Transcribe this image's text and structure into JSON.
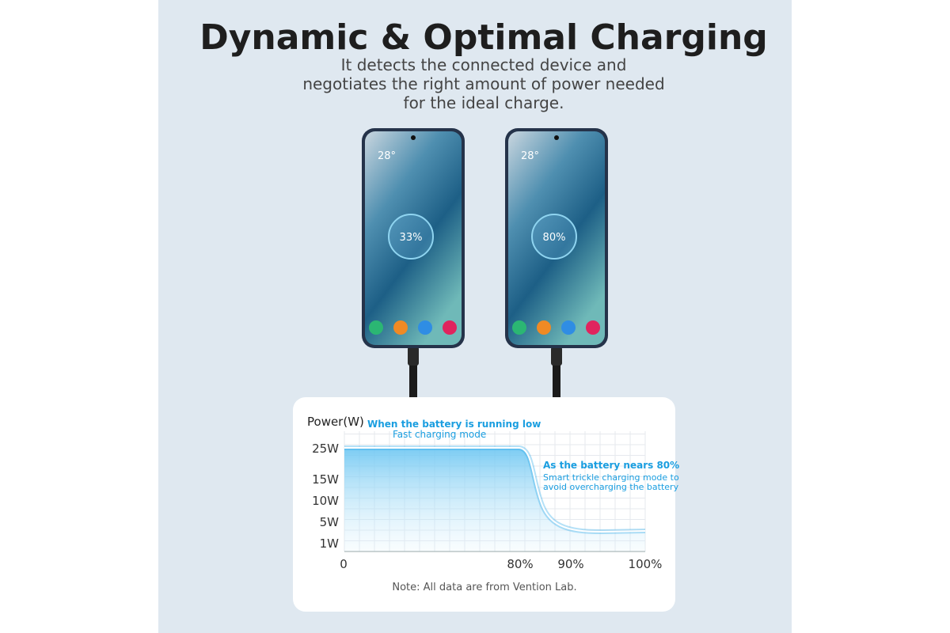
{
  "header": {
    "title": "Dynamic & Optimal Charging",
    "subtitle": [
      "It detects the connected device and",
      "negotiates the right amount of power needed",
      "for the ideal charge."
    ]
  },
  "phones": [
    {
      "temperature": "28°",
      "battery": "33%"
    },
    {
      "temperature": "28°",
      "battery": "80%"
    }
  ],
  "chart": {
    "y_axis_title": "Power(W)",
    "y_labels": [
      "25W",
      "15W",
      "10W",
      "5W",
      "1W"
    ],
    "x_labels": [
      "0",
      "80%",
      "90%",
      "100%"
    ],
    "annotations": [
      {
        "title": "When the battery is running low",
        "text": [
          "Fast charging mode"
        ]
      },
      {
        "title": "As the battery nears 80%",
        "text": [
          "Smart trickle charging mode to",
          "avoid overcharging the battery"
        ]
      }
    ],
    "note": "Note: All data are from Vention Lab."
  }
}
